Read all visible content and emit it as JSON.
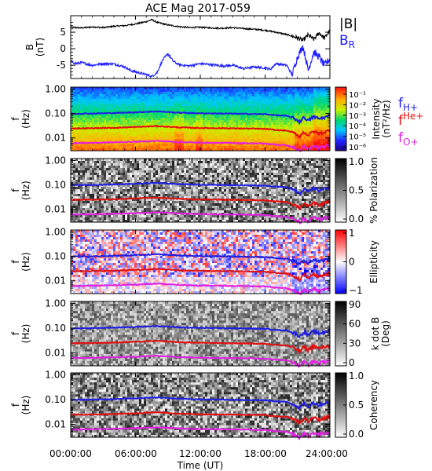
{
  "title": "ACE Mag 2017-059",
  "colors": {
    "B_total": "#000000",
    "B_R": "#1c1cff",
    "f_H": "#1f1fe0",
    "f_He": "#e01010",
    "f_O": "#e020e0"
  },
  "x_axis": {
    "label": "Time (UT)",
    "range_hours": [
      0,
      24
    ],
    "ticks": [
      {
        "hour": 0,
        "label": "00:00:00"
      },
      {
        "hour": 6,
        "label": "06:00:00"
      },
      {
        "hour": 12,
        "label": "12:00:00"
      },
      {
        "hour": 18,
        "label": "18:00:00"
      },
      {
        "hour": 24,
        "label": "24:00:00"
      }
    ]
  },
  "freq_ticks": [
    {
      "value": 1.0,
      "label": "1.00"
    },
    {
      "value": 0.1,
      "label": "0.10"
    },
    {
      "value": 0.01,
      "label": "0.01"
    }
  ],
  "ylabel_f": "f",
  "ylabel_f_unit": "(Hz)",
  "chart_data": [
    {
      "type": "line",
      "panel": "B",
      "ylabel": "B",
      "ylabel_unit": "(nT)",
      "ylim": [
        -9,
        10
      ],
      "yticks": [
        {
          "value": 5,
          "label": "5"
        },
        {
          "value": 0,
          "label": "0"
        },
        {
          "value": -5,
          "label": "-5"
        }
      ],
      "legend": [
        {
          "label": "|B|",
          "color": "#000000"
        },
        {
          "label": "B",
          "sub": "R",
          "color": "#1c1cff"
        }
      ],
      "series": [
        {
          "name": "|B|",
          "color": "#000000",
          "x": [
            0,
            1,
            2,
            3,
            4,
            5,
            6,
            7,
            7.5,
            8,
            9,
            10,
            11,
            12,
            13,
            14,
            15,
            16,
            17,
            18,
            19,
            20,
            21,
            21.5,
            22,
            22.5,
            23,
            23.5,
            24
          ],
          "y": [
            6.5,
            6.3,
            6.6,
            6.4,
            6.8,
            7.0,
            7.5,
            8.2,
            8.8,
            8.0,
            7.2,
            6.7,
            6.4,
            6.5,
            6.3,
            6.2,
            6.4,
            6.1,
            5.9,
            5.6,
            5.0,
            4.3,
            3.3,
            2.5,
            4.2,
            2.8,
            4.8,
            3.2,
            5.5
          ]
        },
        {
          "name": "B_R",
          "color": "#1c1cff",
          "x": [
            0,
            0.5,
            1,
            2,
            3,
            4,
            5,
            5.5,
            6,
            7,
            7.5,
            8,
            8.5,
            9,
            9.5,
            10,
            11,
            12,
            13,
            14,
            15,
            16,
            17,
            18,
            18.5,
            19,
            20,
            20.5,
            21,
            21.5,
            22,
            22.5,
            23,
            23.5,
            24
          ],
          "y": [
            -3.8,
            -4.5,
            -4.2,
            -5.0,
            -4.5,
            -4.6,
            -5.5,
            -6.5,
            -7.0,
            -7.8,
            -8.4,
            -7.2,
            -3.5,
            -1.5,
            -3.8,
            -4.8,
            -5.2,
            -4.5,
            -4.8,
            -5.2,
            -5.0,
            -6.0,
            -5.5,
            -5.8,
            -6.2,
            -4.5,
            -5.0,
            -7.8,
            -2.5,
            0.8,
            -6.5,
            -1.0,
            -2.5,
            -5.0,
            -3.0
          ]
        }
      ]
    },
    {
      "type": "heatmap",
      "panel": "intensity",
      "ylim_hz": [
        0.003,
        1.2
      ],
      "colorbar": {
        "label": "Intensity",
        "unit": "(nT²/Hz)",
        "ticks": [
          "10⁻¹",
          "10⁻²",
          "10⁻³",
          "10⁻⁴",
          "10⁻⁵",
          "10⁻⁶"
        ]
      },
      "legend": [
        {
          "label": "f",
          "sub": "H+",
          "color": "#1f1fe0"
        },
        {
          "label": "f",
          "sup": "He+",
          "color": "#e01010"
        },
        {
          "label": "f",
          "sub": "O+",
          "color": "#e020e0"
        }
      ]
    },
    {
      "type": "heatmap",
      "panel": "polarization",
      "ylim_hz": [
        0.003,
        1.2
      ],
      "colorbar": {
        "label": "% Polarization",
        "ticks": [
          "1.0",
          "0.5",
          "0.0"
        ]
      }
    },
    {
      "type": "heatmap",
      "panel": "ellipticity",
      "ylim_hz": [
        0.003,
        1.2
      ],
      "colorbar": {
        "label": "Ellipticity",
        "ticks": [
          "1",
          "0",
          "−1"
        ]
      }
    },
    {
      "type": "heatmap",
      "panel": "kdotb",
      "ylim_hz": [
        0.003,
        1.2
      ],
      "colorbar": {
        "label": "k dot B",
        "unit": "(Deg)",
        "ticks": [
          "90",
          "60",
          "30",
          "0"
        ]
      }
    },
    {
      "type": "heatmap",
      "panel": "coherency",
      "ylim_hz": [
        0.003,
        1.2
      ],
      "colorbar": {
        "label": "Coherency",
        "ticks": [
          "1.0",
          "0.5",
          "0.0"
        ]
      }
    }
  ],
  "gyrofrequency_lines": [
    {
      "name": "f_H+",
      "color": "#1f1fe0",
      "x": [
        0,
        2,
        4,
        6,
        8,
        10,
        12,
        14,
        16,
        18,
        19,
        20,
        20.8,
        21.2,
        21.6,
        22,
        22.5,
        23,
        24
      ],
      "y": [
        0.098,
        0.1,
        0.105,
        0.112,
        0.122,
        0.108,
        0.102,
        0.1,
        0.097,
        0.094,
        0.085,
        0.08,
        0.06,
        0.045,
        0.07,
        0.05,
        0.075,
        0.06,
        0.08
      ]
    },
    {
      "name": "f_He+",
      "color": "#e01010",
      "x": [
        0,
        2,
        4,
        6,
        8,
        10,
        12,
        14,
        16,
        18,
        19,
        20,
        20.8,
        21.2,
        21.6,
        22,
        22.5,
        23,
        24
      ],
      "y": [
        0.0245,
        0.025,
        0.026,
        0.028,
        0.0305,
        0.027,
        0.0255,
        0.025,
        0.0243,
        0.0235,
        0.021,
        0.02,
        0.015,
        0.0113,
        0.0175,
        0.0125,
        0.019,
        0.015,
        0.02
      ]
    },
    {
      "name": "f_O+",
      "color": "#e020e0",
      "x": [
        0,
        2,
        4,
        6,
        8,
        10,
        12,
        14,
        16,
        18,
        19,
        20,
        20.8,
        21.2,
        21.6,
        22,
        22.5,
        23,
        24
      ],
      "y": [
        0.0061,
        0.0063,
        0.0066,
        0.007,
        0.0076,
        0.0068,
        0.0064,
        0.0063,
        0.0061,
        0.0059,
        0.0053,
        0.005,
        0.0038,
        0.0029,
        0.0044,
        0.0032,
        0.0047,
        0.0038,
        0.005
      ]
    }
  ]
}
